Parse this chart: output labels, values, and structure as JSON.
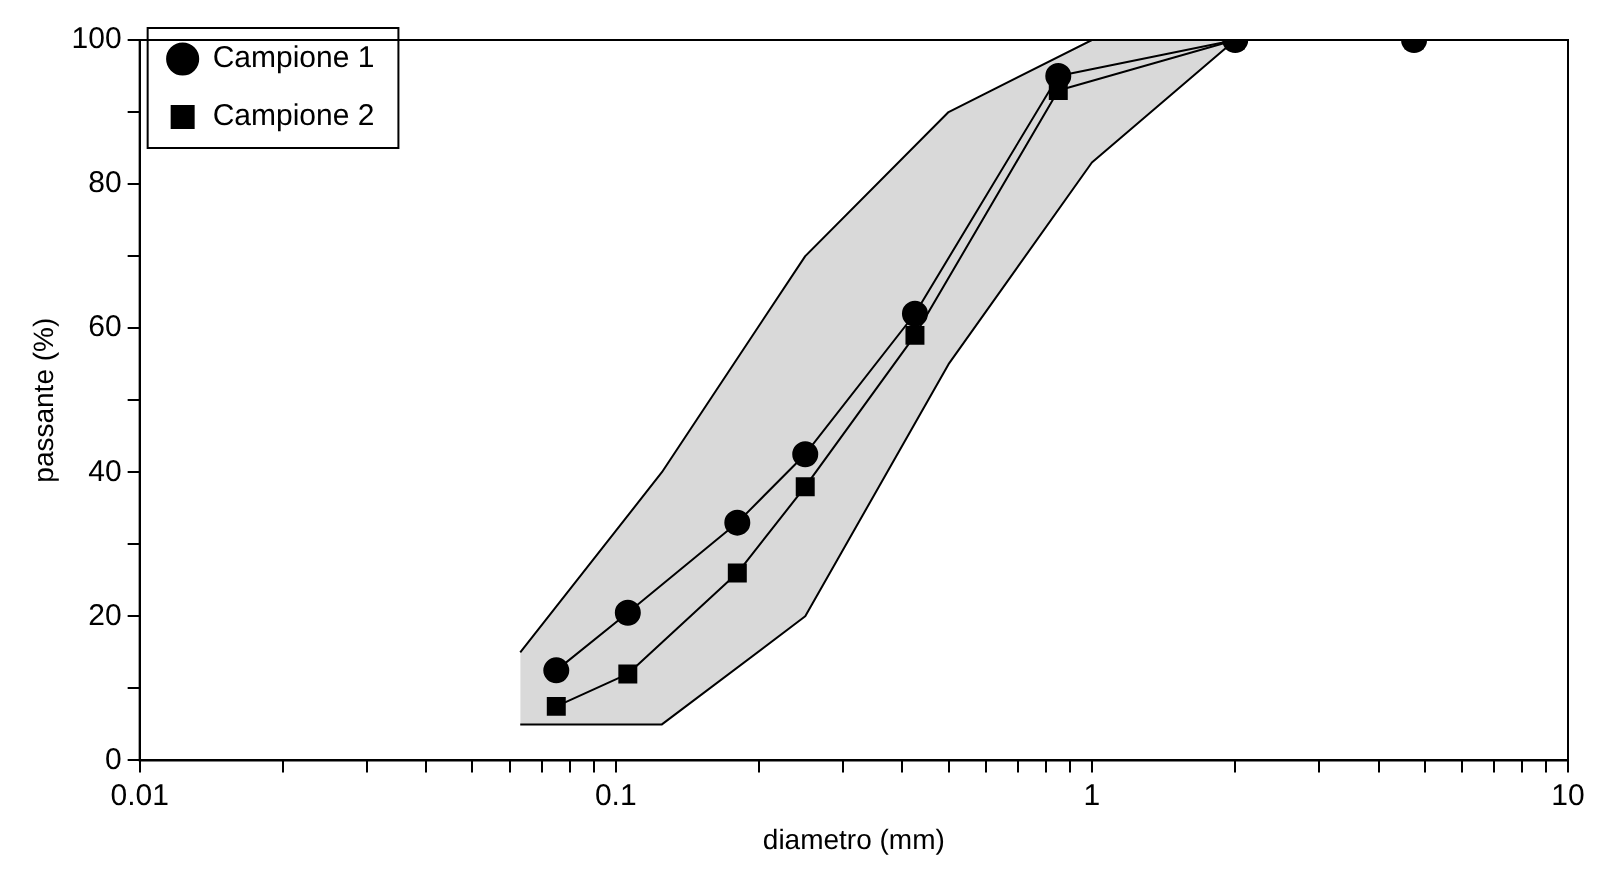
{
  "chart_data": {
    "type": "line",
    "xlabel": "diametro (mm)",
    "ylabel": "passante (%)",
    "log": "x",
    "xlim": [
      0.01,
      10
    ],
    "ylim": [
      0,
      100
    ],
    "xticks": [
      0.01,
      {
        "value": 0.02,
        "label": null
      },
      {
        "value": 0.03,
        "label": null
      },
      {
        "value": 0.04,
        "label": null
      },
      {
        "value": 0.05,
        "label": null
      },
      {
        "value": 0.06,
        "label": null
      },
      {
        "value": 0.07,
        "label": null
      },
      {
        "value": 0.08,
        "label": null
      },
      {
        "value": 0.09,
        "label": null
      },
      0.1,
      {
        "value": 0.2,
        "label": null
      },
      {
        "value": 0.3,
        "label": null
      },
      {
        "value": 0.4,
        "label": null
      },
      {
        "value": 0.5,
        "label": null
      },
      {
        "value": 0.6,
        "label": null
      },
      {
        "value": 0.7,
        "label": null
      },
      {
        "value": 0.8,
        "label": null
      },
      {
        "value": 0.9,
        "label": null
      },
      1,
      {
        "value": 2,
        "label": null
      },
      {
        "value": 3,
        "label": null
      },
      {
        "value": 4,
        "label": null
      },
      {
        "value": 5,
        "label": null
      },
      {
        "value": 6,
        "label": null
      },
      {
        "value": 7,
        "label": null
      },
      {
        "value": 8,
        "label": null
      },
      {
        "value": 9,
        "label": null
      },
      10
    ],
    "yticks": [
      0,
      {
        "value": 10,
        "label": null
      },
      20,
      {
        "value": 30,
        "label": null
      },
      40,
      {
        "value": 50,
        "label": null
      },
      60,
      {
        "value": 70,
        "label": null
      },
      80,
      {
        "value": 90,
        "label": null
      },
      100
    ],
    "grid": false,
    "legend": "top left",
    "line_style": "solid",
    "series": [
      {
        "type": "area",
        "color": "#d9d9d9",
        "x": [
          0.063,
          0.125,
          0.25,
          0.5,
          1,
          2
        ],
        "values": [
          null,
          null,
          null,
          null,
          null,
          null
        ],
        "lower": [
          5,
          5,
          20,
          55,
          83,
          100
        ],
        "upper": [
          15,
          40,
          70,
          90,
          100,
          100
        ]
      },
      {
        "type": "line",
        "color": "#000000",
        "marker": "none",
        "x": [
          0.063,
          0.125,
          0.25,
          0.5,
          1,
          2
        ],
        "values": [
          5,
          5,
          20,
          55,
          83,
          100
        ]
      },
      {
        "type": "line",
        "color": "#000000",
        "marker": "none",
        "x": [
          0.063,
          0.125,
          0.25,
          0.5,
          1,
          2
        ],
        "values": [
          15,
          40,
          70,
          90,
          100,
          100
        ]
      },
      {
        "name": "Campione 1",
        "color": "#000000",
        "marker": "circle",
        "x": [
          0.075,
          0.106,
          0.18,
          0.25,
          0.425,
          0.85,
          2,
          4.75
        ],
        "values": [
          12.5,
          20.5,
          33,
          42.5,
          62,
          95,
          100,
          100
        ]
      },
      {
        "name": "Campione 2",
        "color": "#000000",
        "marker": "square",
        "x": [
          0.075,
          0.106,
          0.18,
          0.25,
          0.425,
          0.85,
          2,
          4.75
        ],
        "values": [
          7.5,
          12,
          26,
          38,
          59,
          93,
          100,
          100
        ]
      }
    ]
  }
}
